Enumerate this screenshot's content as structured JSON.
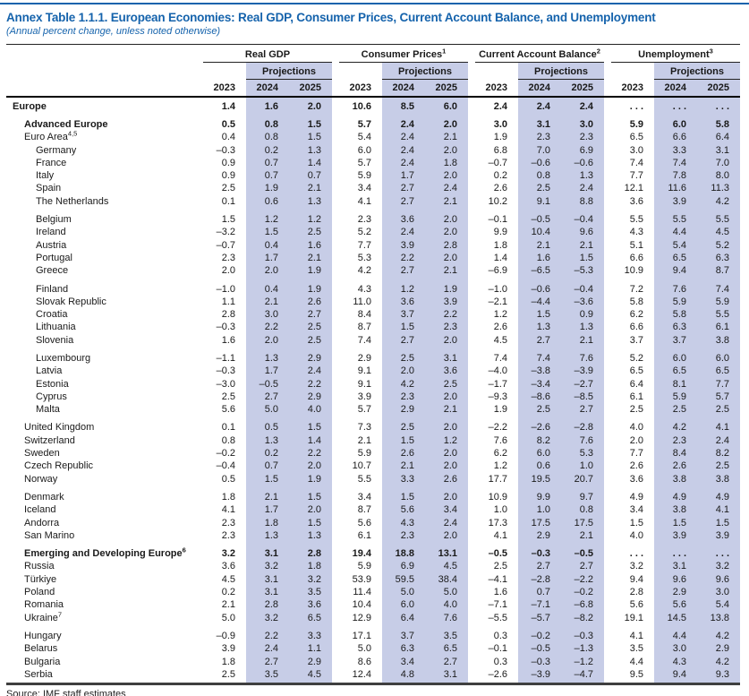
{
  "header": {
    "title": "Annex Table 1.1.1. European Economies: Real GDP, Consumer Prices, Current Account Balance, and Unemployment",
    "subtitle": "(Annual percent change, unless noted otherwise)"
  },
  "colors": {
    "accent_blue": "#1563ac",
    "projection_band": "#c7cde7"
  },
  "table": {
    "groups": [
      {
        "label": "Real GDP",
        "sup": ""
      },
      {
        "label": "Consumer Prices",
        "sup": "1"
      },
      {
        "label": "Current Account Balance",
        "sup": "2"
      },
      {
        "label": "Unemployment",
        "sup": "3"
      }
    ],
    "projections_label": "Projections",
    "years": [
      "2023",
      "2024",
      "2025"
    ],
    "rows": [
      {
        "name": "Europe",
        "sup": "",
        "indent": 0,
        "bold": true,
        "gap": false,
        "values": [
          "1.4",
          "1.6",
          "2.0",
          "10.6",
          "8.5",
          "6.0",
          "2.4",
          "2.4",
          "2.4",
          ". . .",
          ". . .",
          ". . ."
        ]
      },
      {
        "name": "Advanced Europe",
        "sup": "",
        "indent": 1,
        "bold": true,
        "gap": true,
        "values": [
          "0.5",
          "0.8",
          "1.5",
          "5.7",
          "2.4",
          "2.0",
          "3.0",
          "3.1",
          "3.0",
          "5.9",
          "6.0",
          "5.8"
        ]
      },
      {
        "name": "Euro Area",
        "sup": "4,5",
        "indent": 1,
        "bold": false,
        "gap": false,
        "values": [
          "0.4",
          "0.8",
          "1.5",
          "5.4",
          "2.4",
          "2.1",
          "1.9",
          "2.3",
          "2.3",
          "6.5",
          "6.6",
          "6.4"
        ]
      },
      {
        "name": "Germany",
        "sup": "",
        "indent": 2,
        "bold": false,
        "gap": false,
        "values": [
          "–0.3",
          "0.2",
          "1.3",
          "6.0",
          "2.4",
          "2.0",
          "6.8",
          "7.0",
          "6.9",
          "3.0",
          "3.3",
          "3.1"
        ]
      },
      {
        "name": "France",
        "sup": "",
        "indent": 2,
        "bold": false,
        "gap": false,
        "values": [
          "0.9",
          "0.7",
          "1.4",
          "5.7",
          "2.4",
          "1.8",
          "–0.7",
          "–0.6",
          "–0.6",
          "7.4",
          "7.4",
          "7.0"
        ]
      },
      {
        "name": "Italy",
        "sup": "",
        "indent": 2,
        "bold": false,
        "gap": false,
        "values": [
          "0.9",
          "0.7",
          "0.7",
          "5.9",
          "1.7",
          "2.0",
          "0.2",
          "0.8",
          "1.3",
          "7.7",
          "7.8",
          "8.0"
        ]
      },
      {
        "name": "Spain",
        "sup": "",
        "indent": 2,
        "bold": false,
        "gap": false,
        "values": [
          "2.5",
          "1.9",
          "2.1",
          "3.4",
          "2.7",
          "2.4",
          "2.6",
          "2.5",
          "2.4",
          "12.1",
          "11.6",
          "11.3"
        ]
      },
      {
        "name": "The Netherlands",
        "sup": "",
        "indent": 2,
        "bold": false,
        "gap": false,
        "values": [
          "0.1",
          "0.6",
          "1.3",
          "4.1",
          "2.7",
          "2.1",
          "10.2",
          "9.1",
          "8.8",
          "3.6",
          "3.9",
          "4.2"
        ]
      },
      {
        "name": "Belgium",
        "sup": "",
        "indent": 2,
        "bold": false,
        "gap": true,
        "values": [
          "1.5",
          "1.2",
          "1.2",
          "2.3",
          "3.6",
          "2.0",
          "–0.1",
          "–0.5",
          "–0.4",
          "5.5",
          "5.5",
          "5.5"
        ]
      },
      {
        "name": "Ireland",
        "sup": "",
        "indent": 2,
        "bold": false,
        "gap": false,
        "values": [
          "–3.2",
          "1.5",
          "2.5",
          "5.2",
          "2.4",
          "2.0",
          "9.9",
          "10.4",
          "9.6",
          "4.3",
          "4.4",
          "4.5"
        ]
      },
      {
        "name": "Austria",
        "sup": "",
        "indent": 2,
        "bold": false,
        "gap": false,
        "values": [
          "–0.7",
          "0.4",
          "1.6",
          "7.7",
          "3.9",
          "2.8",
          "1.8",
          "2.1",
          "2.1",
          "5.1",
          "5.4",
          "5.2"
        ]
      },
      {
        "name": "Portugal",
        "sup": "",
        "indent": 2,
        "bold": false,
        "gap": false,
        "values": [
          "2.3",
          "1.7",
          "2.1",
          "5.3",
          "2.2",
          "2.0",
          "1.4",
          "1.6",
          "1.5",
          "6.6",
          "6.5",
          "6.3"
        ]
      },
      {
        "name": "Greece",
        "sup": "",
        "indent": 2,
        "bold": false,
        "gap": false,
        "values": [
          "2.0",
          "2.0",
          "1.9",
          "4.2",
          "2.7",
          "2.1",
          "–6.9",
          "–6.5",
          "–5.3",
          "10.9",
          "9.4",
          "8.7"
        ]
      },
      {
        "name": "Finland",
        "sup": "",
        "indent": 2,
        "bold": false,
        "gap": true,
        "values": [
          "–1.0",
          "0.4",
          "1.9",
          "4.3",
          "1.2",
          "1.9",
          "–1.0",
          "–0.6",
          "–0.4",
          "7.2",
          "7.6",
          "7.4"
        ]
      },
      {
        "name": "Slovak Republic",
        "sup": "",
        "indent": 2,
        "bold": false,
        "gap": false,
        "values": [
          "1.1",
          "2.1",
          "2.6",
          "11.0",
          "3.6",
          "3.9",
          "–2.1",
          "–4.4",
          "–3.6",
          "5.8",
          "5.9",
          "5.9"
        ]
      },
      {
        "name": "Croatia",
        "sup": "",
        "indent": 2,
        "bold": false,
        "gap": false,
        "values": [
          "2.8",
          "3.0",
          "2.7",
          "8.4",
          "3.7",
          "2.2",
          "1.2",
          "1.5",
          "0.9",
          "6.2",
          "5.8",
          "5.5"
        ]
      },
      {
        "name": "Lithuania",
        "sup": "",
        "indent": 2,
        "bold": false,
        "gap": false,
        "values": [
          "–0.3",
          "2.2",
          "2.5",
          "8.7",
          "1.5",
          "2.3",
          "2.6",
          "1.3",
          "1.3",
          "6.6",
          "6.3",
          "6.1"
        ]
      },
      {
        "name": "Slovenia",
        "sup": "",
        "indent": 2,
        "bold": false,
        "gap": false,
        "values": [
          "1.6",
          "2.0",
          "2.5",
          "7.4",
          "2.7",
          "2.0",
          "4.5",
          "2.7",
          "2.1",
          "3.7",
          "3.7",
          "3.8"
        ]
      },
      {
        "name": "Luxembourg",
        "sup": "",
        "indent": 2,
        "bold": false,
        "gap": true,
        "values": [
          "–1.1",
          "1.3",
          "2.9",
          "2.9",
          "2.5",
          "3.1",
          "7.4",
          "7.4",
          "7.6",
          "5.2",
          "6.0",
          "6.0"
        ]
      },
      {
        "name": "Latvia",
        "sup": "",
        "indent": 2,
        "bold": false,
        "gap": false,
        "values": [
          "–0.3",
          "1.7",
          "2.4",
          "9.1",
          "2.0",
          "3.6",
          "–4.0",
          "–3.8",
          "–3.9",
          "6.5",
          "6.5",
          "6.5"
        ]
      },
      {
        "name": "Estonia",
        "sup": "",
        "indent": 2,
        "bold": false,
        "gap": false,
        "values": [
          "–3.0",
          "–0.5",
          "2.2",
          "9.1",
          "4.2",
          "2.5",
          "–1.7",
          "–3.4",
          "–2.7",
          "6.4",
          "8.1",
          "7.7"
        ]
      },
      {
        "name": "Cyprus",
        "sup": "",
        "indent": 2,
        "bold": false,
        "gap": false,
        "values": [
          "2.5",
          "2.7",
          "2.9",
          "3.9",
          "2.3",
          "2.0",
          "–9.3",
          "–8.6",
          "–8.5",
          "6.1",
          "5.9",
          "5.7"
        ]
      },
      {
        "name": "Malta",
        "sup": "",
        "indent": 2,
        "bold": false,
        "gap": false,
        "values": [
          "5.6",
          "5.0",
          "4.0",
          "5.7",
          "2.9",
          "2.1",
          "1.9",
          "2.5",
          "2.7",
          "2.5",
          "2.5",
          "2.5"
        ]
      },
      {
        "name": "United Kingdom",
        "sup": "",
        "indent": 1,
        "bold": false,
        "gap": true,
        "values": [
          "0.1",
          "0.5",
          "1.5",
          "7.3",
          "2.5",
          "2.0",
          "–2.2",
          "–2.6",
          "–2.8",
          "4.0",
          "4.2",
          "4.1"
        ]
      },
      {
        "name": "Switzerland",
        "sup": "",
        "indent": 1,
        "bold": false,
        "gap": false,
        "values": [
          "0.8",
          "1.3",
          "1.4",
          "2.1",
          "1.5",
          "1.2",
          "7.6",
          "8.2",
          "7.6",
          "2.0",
          "2.3",
          "2.4"
        ]
      },
      {
        "name": "Sweden",
        "sup": "",
        "indent": 1,
        "bold": false,
        "gap": false,
        "values": [
          "–0.2",
          "0.2",
          "2.2",
          "5.9",
          "2.6",
          "2.0",
          "6.2",
          "6.0",
          "5.3",
          "7.7",
          "8.4",
          "8.2"
        ]
      },
      {
        "name": "Czech Republic",
        "sup": "",
        "indent": 1,
        "bold": false,
        "gap": false,
        "values": [
          "–0.4",
          "0.7",
          "2.0",
          "10.7",
          "2.1",
          "2.0",
          "1.2",
          "0.6",
          "1.0",
          "2.6",
          "2.6",
          "2.5"
        ]
      },
      {
        "name": "Norway",
        "sup": "",
        "indent": 1,
        "bold": false,
        "gap": false,
        "values": [
          "0.5",
          "1.5",
          "1.9",
          "5.5",
          "3.3",
          "2.6",
          "17.7",
          "19.5",
          "20.7",
          "3.6",
          "3.8",
          "3.8"
        ]
      },
      {
        "name": "Denmark",
        "sup": "",
        "indent": 1,
        "bold": false,
        "gap": true,
        "values": [
          "1.8",
          "2.1",
          "1.5",
          "3.4",
          "1.5",
          "2.0",
          "10.9",
          "9.9",
          "9.7",
          "4.9",
          "4.9",
          "4.9"
        ]
      },
      {
        "name": "Iceland",
        "sup": "",
        "indent": 1,
        "bold": false,
        "gap": false,
        "values": [
          "4.1",
          "1.7",
          "2.0",
          "8.7",
          "5.6",
          "3.4",
          "1.0",
          "1.0",
          "0.8",
          "3.4",
          "3.8",
          "4.1"
        ]
      },
      {
        "name": "Andorra",
        "sup": "",
        "indent": 1,
        "bold": false,
        "gap": false,
        "values": [
          "2.3",
          "1.8",
          "1.5",
          "5.6",
          "4.3",
          "2.4",
          "17.3",
          "17.5",
          "17.5",
          "1.5",
          "1.5",
          "1.5"
        ]
      },
      {
        "name": "San Marino",
        "sup": "",
        "indent": 1,
        "bold": false,
        "gap": false,
        "values": [
          "2.3",
          "1.3",
          "1.3",
          "6.1",
          "2.3",
          "2.0",
          "4.1",
          "2.9",
          "2.1",
          "4.0",
          "3.9",
          "3.9"
        ]
      },
      {
        "name": "Emerging and Developing Europe",
        "sup": "6",
        "indent": 1,
        "bold": true,
        "gap": true,
        "values": [
          "3.2",
          "3.1",
          "2.8",
          "19.4",
          "18.8",
          "13.1",
          "–0.5",
          "–0.3",
          "–0.5",
          ". . .",
          ". . .",
          ". . ."
        ]
      },
      {
        "name": "Russia",
        "sup": "",
        "indent": 1,
        "bold": false,
        "gap": false,
        "values": [
          "3.6",
          "3.2",
          "1.8",
          "5.9",
          "6.9",
          "4.5",
          "2.5",
          "2.7",
          "2.7",
          "3.2",
          "3.1",
          "3.2"
        ]
      },
      {
        "name": "Türkiye",
        "sup": "",
        "indent": 1,
        "bold": false,
        "gap": false,
        "values": [
          "4.5",
          "3.1",
          "3.2",
          "53.9",
          "59.5",
          "38.4",
          "–4.1",
          "–2.8",
          "–2.2",
          "9.4",
          "9.6",
          "9.6"
        ]
      },
      {
        "name": "Poland",
        "sup": "",
        "indent": 1,
        "bold": false,
        "gap": false,
        "values": [
          "0.2",
          "3.1",
          "3.5",
          "11.4",
          "5.0",
          "5.0",
          "1.6",
          "0.7",
          "–0.2",
          "2.8",
          "2.9",
          "3.0"
        ]
      },
      {
        "name": "Romania",
        "sup": "",
        "indent": 1,
        "bold": false,
        "gap": false,
        "values": [
          "2.1",
          "2.8",
          "3.6",
          "10.4",
          "6.0",
          "4.0",
          "–7.1",
          "–7.1",
          "–6.8",
          "5.6",
          "5.6",
          "5.4"
        ]
      },
      {
        "name": "Ukraine",
        "sup": "7",
        "indent": 1,
        "bold": false,
        "gap": false,
        "values": [
          "5.0",
          "3.2",
          "6.5",
          "12.9",
          "6.4",
          "7.6",
          "–5.5",
          "–5.7",
          "–8.2",
          "19.1",
          "14.5",
          "13.8"
        ]
      },
      {
        "name": "Hungary",
        "sup": "",
        "indent": 1,
        "bold": false,
        "gap": true,
        "values": [
          "–0.9",
          "2.2",
          "3.3",
          "17.1",
          "3.7",
          "3.5",
          "0.3",
          "–0.2",
          "–0.3",
          "4.1",
          "4.4",
          "4.2"
        ]
      },
      {
        "name": "Belarus",
        "sup": "",
        "indent": 1,
        "bold": false,
        "gap": false,
        "values": [
          "3.9",
          "2.4",
          "1.1",
          "5.0",
          "6.3",
          "6.5",
          "–0.1",
          "–0.5",
          "–1.3",
          "3.5",
          "3.0",
          "2.9"
        ]
      },
      {
        "name": "Bulgaria",
        "sup": "",
        "indent": 1,
        "bold": false,
        "gap": false,
        "values": [
          "1.8",
          "2.7",
          "2.9",
          "8.6",
          "3.4",
          "2.7",
          "0.3",
          "–0.3",
          "–1.2",
          "4.4",
          "4.3",
          "4.2"
        ]
      },
      {
        "name": "Serbia",
        "sup": "",
        "indent": 1,
        "bold": false,
        "gap": false,
        "values": [
          "2.5",
          "3.5",
          "4.5",
          "12.4",
          "4.8",
          "3.1",
          "–2.6",
          "–3.9",
          "–4.7",
          "9.5",
          "9.4",
          "9.3"
        ]
      }
    ]
  },
  "footer": {
    "source": "Source: IMF staff estimates"
  }
}
